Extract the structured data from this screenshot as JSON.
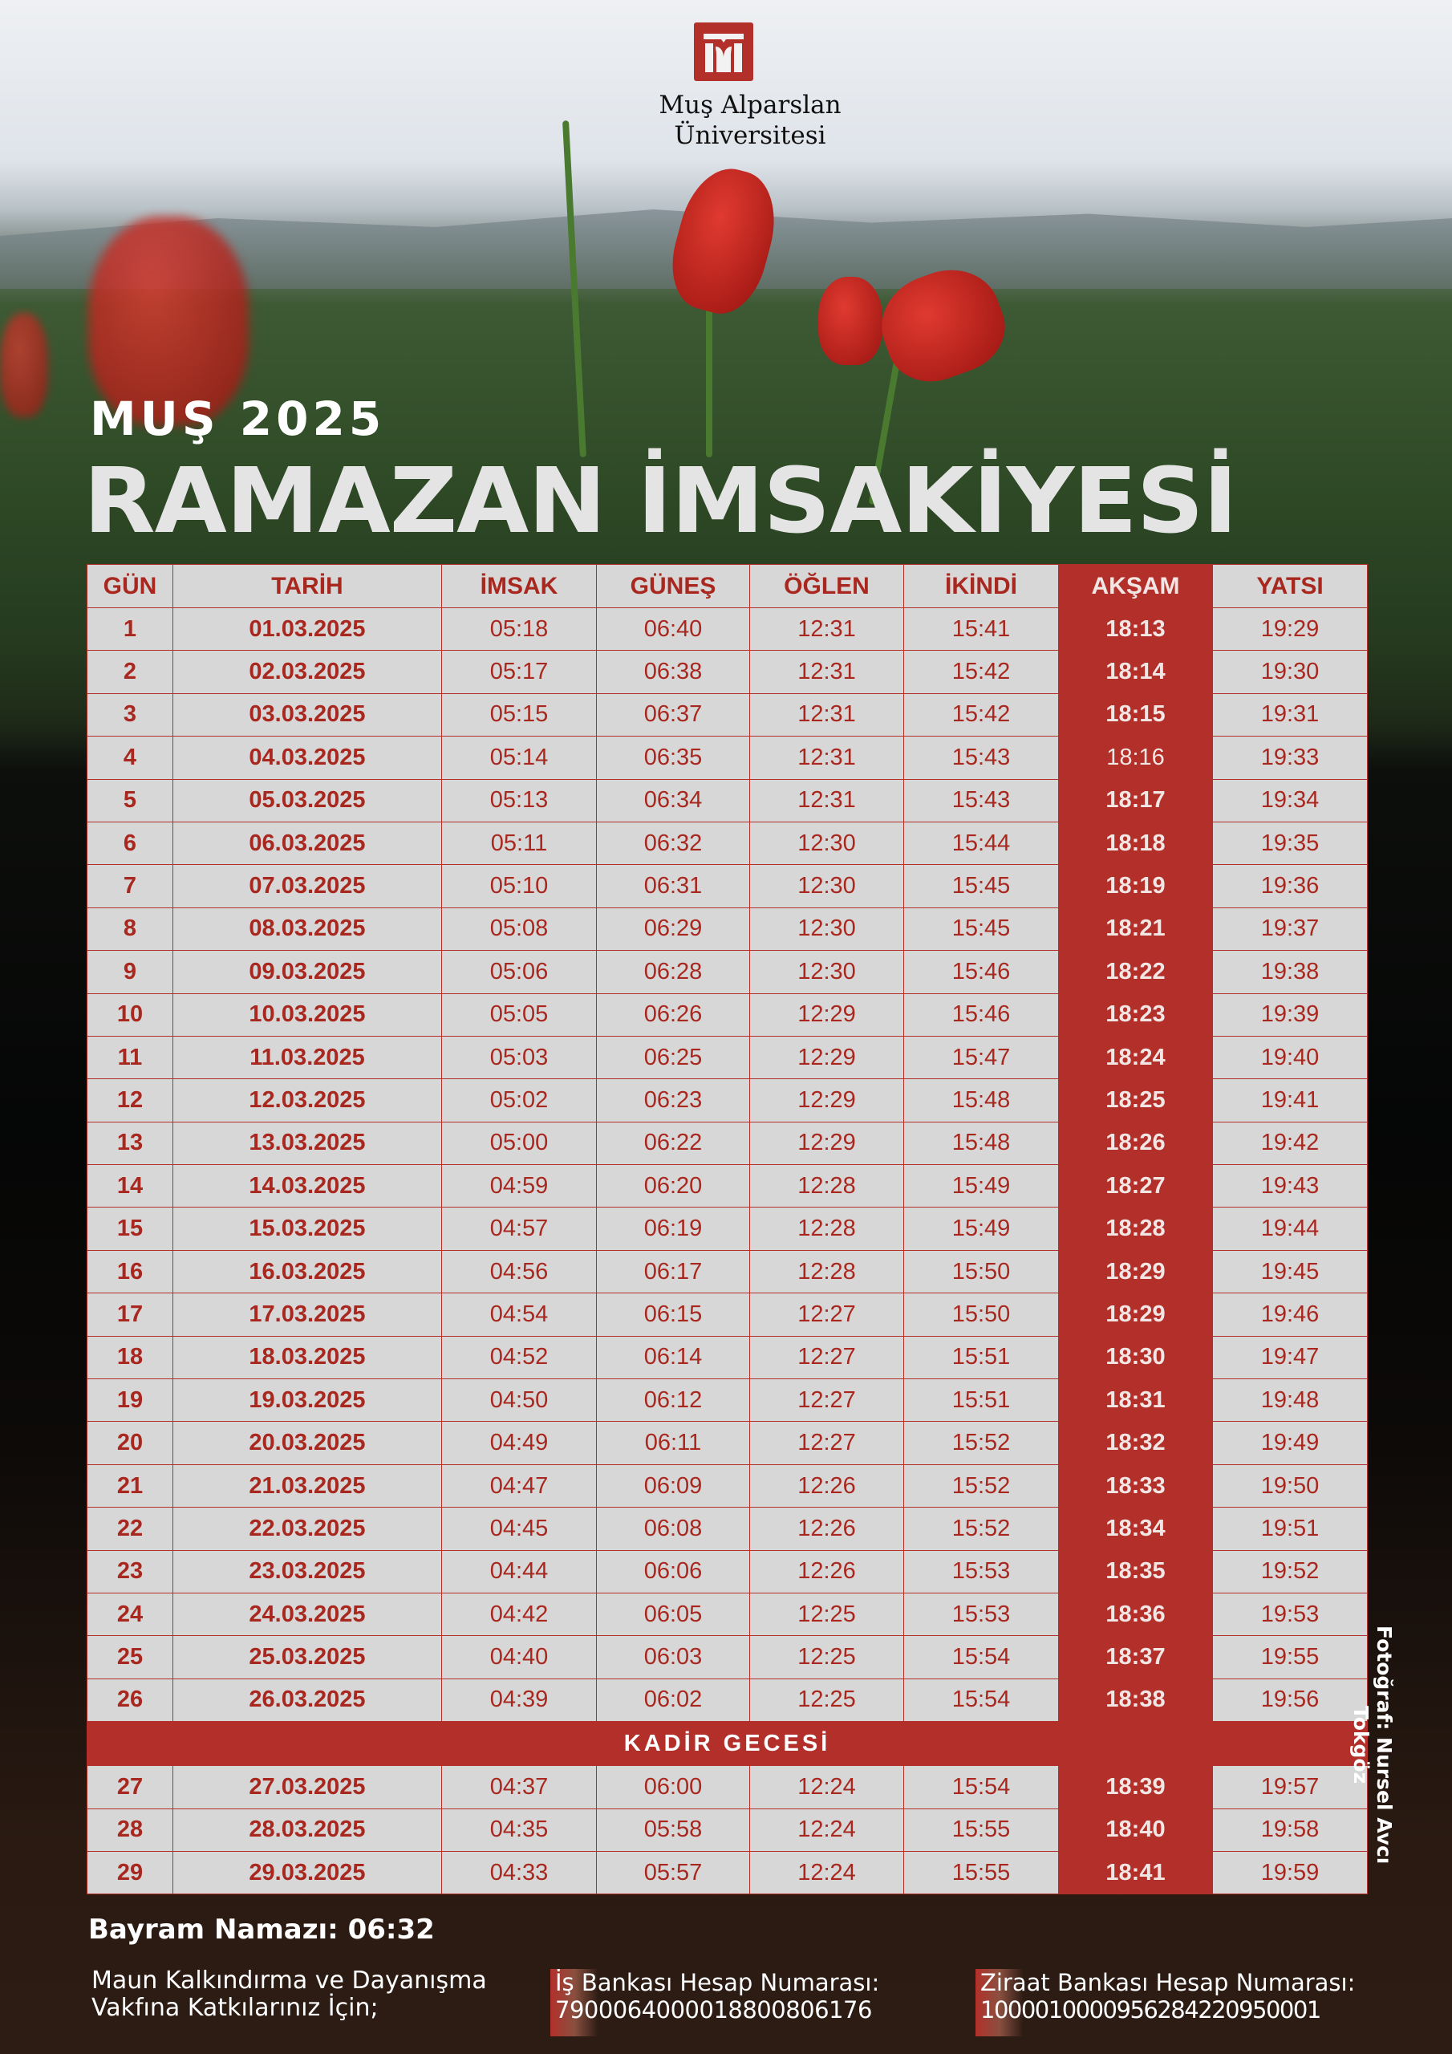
{
  "header": {
    "university_line1": "Muş Alparslan",
    "university_line2": "Üniversitesi",
    "subtitle": "MUŞ 2025",
    "title": "RAMAZAN İMSAKİYESİ"
  },
  "table": {
    "columns": [
      "GÜN",
      "TARİH",
      "İMSAK",
      "GÜNEŞ",
      "ÖĞLEN",
      "İKİNDİ",
      "AKŞAM",
      "YATSI"
    ],
    "rows": [
      [
        "1",
        "01.03.2025",
        "05:18",
        "06:40",
        "12:31",
        "15:41",
        "18:13",
        "19:29"
      ],
      [
        "2",
        "02.03.2025",
        "05:17",
        "06:38",
        "12:31",
        "15:42",
        "18:14",
        "19:30"
      ],
      [
        "3",
        "03.03.2025",
        "05:15",
        "06:37",
        "12:31",
        "15:42",
        "18:15",
        "19:31"
      ],
      [
        "4",
        "04.03.2025",
        "05:14",
        "06:35",
        "12:31",
        "15:43",
        "18:16",
        "19:33"
      ],
      [
        "5",
        "05.03.2025",
        "05:13",
        "06:34",
        "12:31",
        "15:43",
        "18:17",
        "19:34"
      ],
      [
        "6",
        "06.03.2025",
        "05:11",
        "06:32",
        "12:30",
        "15:44",
        "18:18",
        "19:35"
      ],
      [
        "7",
        "07.03.2025",
        "05:10",
        "06:31",
        "12:30",
        "15:45",
        "18:19",
        "19:36"
      ],
      [
        "8",
        "08.03.2025",
        "05:08",
        "06:29",
        "12:30",
        "15:45",
        "18:21",
        "19:37"
      ],
      [
        "9",
        "09.03.2025",
        "05:06",
        "06:28",
        "12:30",
        "15:46",
        "18:22",
        "19:38"
      ],
      [
        "10",
        "10.03.2025",
        "05:05",
        "06:26",
        "12:29",
        "15:46",
        "18:23",
        "19:39"
      ],
      [
        "11",
        "11.03.2025",
        "05:03",
        "06:25",
        "12:29",
        "15:47",
        "18:24",
        "19:40"
      ],
      [
        "12",
        "12.03.2025",
        "05:02",
        "06:23",
        "12:29",
        "15:48",
        "18:25",
        "19:41"
      ],
      [
        "13",
        "13.03.2025",
        "05:00",
        "06:22",
        "12:29",
        "15:48",
        "18:26",
        "19:42"
      ],
      [
        "14",
        "14.03.2025",
        "04:59",
        "06:20",
        "12:28",
        "15:49",
        "18:27",
        "19:43"
      ],
      [
        "15",
        "15.03.2025",
        "04:57",
        "06:19",
        "12:28",
        "15:49",
        "18:28",
        "19:44"
      ],
      [
        "16",
        "16.03.2025",
        "04:56",
        "06:17",
        "12:28",
        "15:50",
        "18:29",
        "19:45"
      ],
      [
        "17",
        "17.03.2025",
        "04:54",
        "06:15",
        "12:27",
        "15:50",
        "18:29",
        "19:46"
      ],
      [
        "18",
        "18.03.2025",
        "04:52",
        "06:14",
        "12:27",
        "15:51",
        "18:30",
        "19:47"
      ],
      [
        "19",
        "19.03.2025",
        "04:50",
        "06:12",
        "12:27",
        "15:51",
        "18:31",
        "19:48"
      ],
      [
        "20",
        "20.03.2025",
        "04:49",
        "06:11",
        "12:27",
        "15:52",
        "18:32",
        "19:49"
      ],
      [
        "21",
        "21.03.2025",
        "04:47",
        "06:09",
        "12:26",
        "15:52",
        "18:33",
        "19:50"
      ],
      [
        "22",
        "22.03.2025",
        "04:45",
        "06:08",
        "12:26",
        "15:52",
        "18:34",
        "19:51"
      ],
      [
        "23",
        "23.03.2025",
        "04:44",
        "06:06",
        "12:26",
        "15:53",
        "18:35",
        "19:52"
      ],
      [
        "24",
        "24.03.2025",
        "04:42",
        "06:05",
        "12:25",
        "15:53",
        "18:36",
        "19:53"
      ],
      [
        "25",
        "25.03.2025",
        "04:40",
        "06:03",
        "12:25",
        "15:54",
        "18:37",
        "19:55"
      ],
      [
        "26",
        "26.03.2025",
        "04:39",
        "06:02",
        "12:25",
        "15:54",
        "18:38",
        "19:56"
      ]
    ],
    "special_row": "KADİR GECESİ",
    "rows_after": [
      [
        "27",
        "27.03.2025",
        "04:37",
        "06:00",
        "12:24",
        "15:54",
        "18:39",
        "19:57"
      ],
      [
        "28",
        "28.03.2025",
        "04:35",
        "05:58",
        "12:24",
        "15:55",
        "18:40",
        "19:58"
      ],
      [
        "29",
        "29.03.2025",
        "04:33",
        "05:57",
        "12:24",
        "15:55",
        "18:41",
        "19:59"
      ]
    ]
  },
  "photo_credit": "Fotoğraf: Nursel Avcı Tokgöz",
  "footer": {
    "bayram": "Bayram Namazı: 06:32",
    "vakif_line1": "Maun Kalkındırma ve Dayanışma",
    "vakif_line2": "Vakfına Katkılarınız İçin;",
    "is_bank_label": "İş Bankası Hesap Numarası:",
    "is_bank_number": "7900064000018800806176",
    "ziraat_label": "Ziraat Bankası Hesap Numarası:",
    "ziraat_number": "1000010000956284220950001"
  },
  "colors": {
    "accent": "#b3302a",
    "cell": "#d8d7d7"
  }
}
